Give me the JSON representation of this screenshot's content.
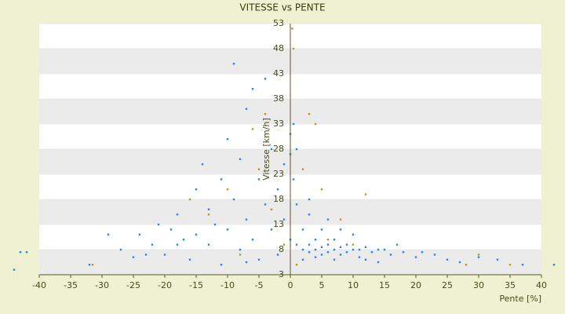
{
  "chart_data": {
    "type": "scatter",
    "title": "VITESSE vs PENTE",
    "x_label": "Pente [%]",
    "y_label": "Vitesse [km/h]",
    "xlim": [
      -40,
      40
    ],
    "xticks": [
      -40,
      -35,
      -30,
      -25,
      -20,
      -15,
      -10,
      -5,
      0,
      5,
      10,
      15,
      20,
      25,
      30,
      35,
      40
    ],
    "ylim": [
      3,
      53
    ],
    "yticks": [
      3,
      8,
      13,
      18,
      23,
      28,
      33,
      38,
      43,
      48,
      53
    ],
    "grid": "bands",
    "series": [
      {
        "color": "#2f86d2",
        "x": [
          -44,
          -43,
          -42,
          -32,
          -29,
          -27,
          -25,
          -24,
          -22,
          -21,
          -20,
          -19,
          -18,
          -17,
          -16,
          -15,
          -14,
          -13,
          -13,
          -12,
          -11,
          -10,
          -10,
          -9,
          -9,
          -8,
          -8,
          -7,
          -7,
          -6,
          -6,
          -5,
          -5,
          -4,
          -4,
          -3,
          -3,
          -2,
          -2,
          -1,
          -1,
          0,
          0,
          0,
          0.5,
          0.5,
          1,
          1,
          1,
          2,
          2,
          2,
          3,
          3,
          3,
          4,
          4,
          4,
          5,
          5,
          5,
          6,
          6,
          7,
          7,
          7,
          8,
          8,
          9,
          9,
          10,
          10,
          11,
          11,
          12,
          13,
          14,
          15,
          16,
          17,
          18,
          20,
          21,
          23,
          25,
          27,
          30,
          33,
          37,
          42,
          6,
          8,
          12,
          14,
          3,
          -15,
          -18,
          -23,
          -11,
          -7
        ],
        "values": [
          4,
          7.5,
          7.5,
          5,
          11,
          8,
          6.5,
          11,
          9,
          13,
          7,
          12,
          15,
          10,
          6,
          20,
          25,
          16,
          9,
          13,
          22,
          30,
          12,
          45,
          18,
          8,
          26,
          36,
          14,
          40,
          10,
          22,
          6,
          42,
          17,
          12,
          28,
          20,
          7,
          25,
          14,
          31,
          27,
          10,
          33,
          22,
          28,
          17,
          9,
          12,
          8,
          6,
          9,
          7.5,
          15,
          8,
          10,
          6.5,
          8.5,
          7,
          12,
          9,
          7.5,
          8,
          10,
          6,
          8.5,
          7,
          9,
          7.5,
          8,
          11,
          8,
          6.5,
          8.5,
          7.5,
          8,
          8,
          7,
          9,
          7.5,
          6.5,
          7.5,
          7,
          6,
          5.5,
          6.5,
          6,
          5,
          5,
          14,
          12,
          6,
          5.5,
          18,
          11,
          9,
          7,
          5,
          5.5
        ]
      },
      {
        "color": "#b59a2a",
        "x": [
          -31.5,
          -16,
          -13,
          -10,
          -6,
          -5,
          -4,
          -3,
          -1,
          0.3,
          0.5,
          1,
          2,
          3,
          4,
          5,
          8,
          12,
          28,
          35,
          30,
          -8,
          6,
          10
        ],
        "values": [
          5,
          18,
          15,
          20,
          32,
          24,
          35,
          16,
          9,
          52,
          48,
          5,
          24,
          35,
          33,
          20,
          14,
          19,
          5,
          5,
          7,
          7,
          10,
          9
        ]
      }
    ]
  }
}
